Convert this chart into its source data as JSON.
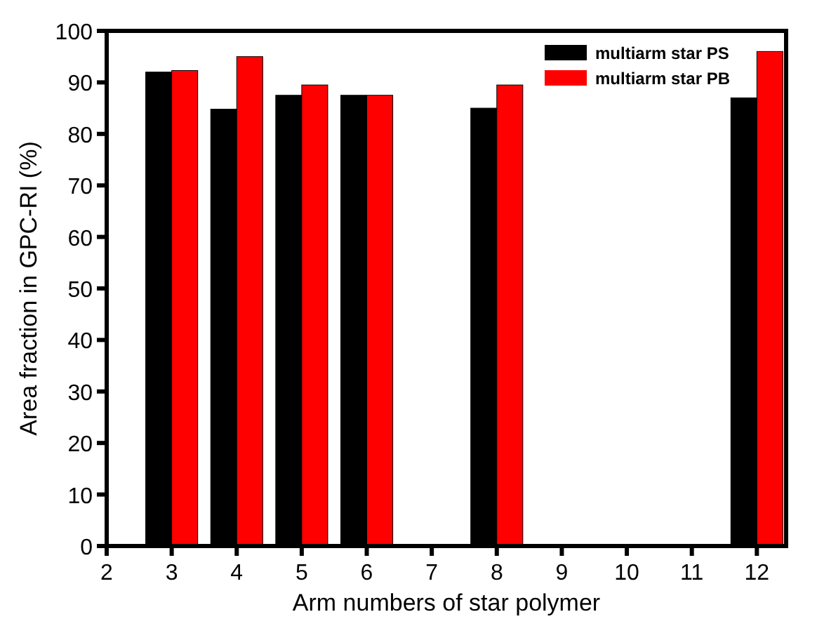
{
  "chart_data": {
    "type": "bar",
    "xlabel": "Arm numbers of star polymer",
    "ylabel": "Area fraction in GPC-RI (%)",
    "x": [
      3,
      4,
      5,
      6,
      8,
      12
    ],
    "series": [
      {
        "name": "multiarm star PS",
        "color": "#000000",
        "values": [
          92,
          84.8,
          87.5,
          87.5,
          85,
          87
        ]
      },
      {
        "name": "multiarm star PB",
        "color": "#ff0000",
        "values": [
          92.3,
          95,
          89.5,
          87.5,
          89.5,
          96
        ]
      }
    ],
    "xlim": [
      2,
      12.45
    ],
    "xticks": [
      2,
      3,
      4,
      5,
      6,
      7,
      8,
      9,
      10,
      11,
      12
    ],
    "ylim": [
      0,
      100
    ],
    "yticks": [
      0,
      10,
      20,
      30,
      40,
      50,
      60,
      70,
      80,
      90,
      100
    ],
    "grid": false,
    "legend": "top right"
  }
}
